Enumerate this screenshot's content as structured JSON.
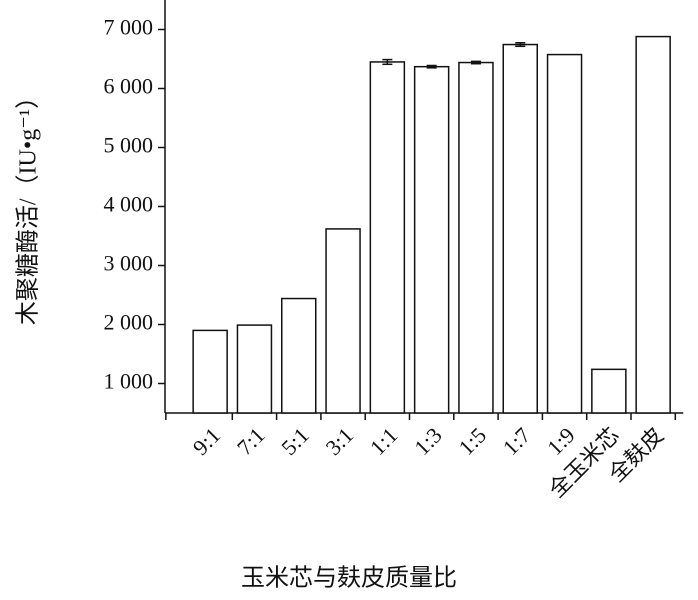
{
  "chart_data": {
    "type": "bar",
    "x_label": "玉米芯与麸皮质量比",
    "y_label": "木聚糖酶活/（IU•g⁻¹）",
    "categories": [
      "9:1",
      "7:1",
      "5:1",
      "3:1",
      "1:1",
      "1:3",
      "1:5",
      "1:7",
      "1:9",
      "全玉米芯",
      "全麸皮"
    ],
    "values": [
      1900,
      1990,
      2440,
      3620,
      6450,
      6370,
      6440,
      6745,
      6575,
      1240,
      6880
    ],
    "errors": [
      null,
      null,
      null,
      null,
      40,
      20,
      20,
      30,
      null,
      null,
      null
    ],
    "color": "#ffffff",
    "ylim": [
      500,
      7500
    ],
    "yticks": [
      {
        "value": 1000,
        "label": "1 000"
      },
      {
        "value": 2000,
        "label": "2 000"
      },
      {
        "value": 3000,
        "label": "3 000"
      },
      {
        "value": 4000,
        "label": "4 000"
      },
      {
        "value": 5000,
        "label": "5 000"
      },
      {
        "value": 6000,
        "label": "6 000"
      },
      {
        "value": 7000,
        "label": "7 000"
      }
    ],
    "grid": false
  }
}
